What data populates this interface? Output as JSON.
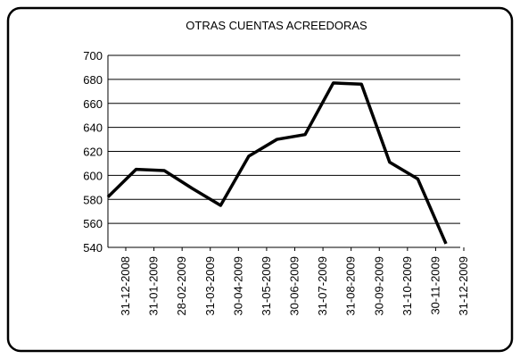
{
  "chart_data": {
    "type": "line",
    "title": "OTRAS CUENTAS ACREEDORAS",
    "categories": [
      "31-12-2008",
      "31-01-2009",
      "28-02-2009",
      "31-03-2009",
      "30-04-2009",
      "31-05-2009",
      "30-06-2009",
      "31-07-2009",
      "31-08-2009",
      "30-09-2009",
      "31-10-2009",
      "30-11-2009",
      "31-12-2009"
    ],
    "series": [
      {
        "name": "OTRAS CUENTAS ACREEDORAS",
        "color": "#000000",
        "values": [
          582,
          605,
          604,
          589,
          575,
          616,
          630,
          634,
          677,
          676,
          611,
          597,
          543
        ]
      }
    ],
    "ylim": [
      540,
      700
    ],
    "yticks": [
      540,
      560,
      580,
      600,
      620,
      640,
      660,
      680,
      700
    ],
    "grid": true
  }
}
